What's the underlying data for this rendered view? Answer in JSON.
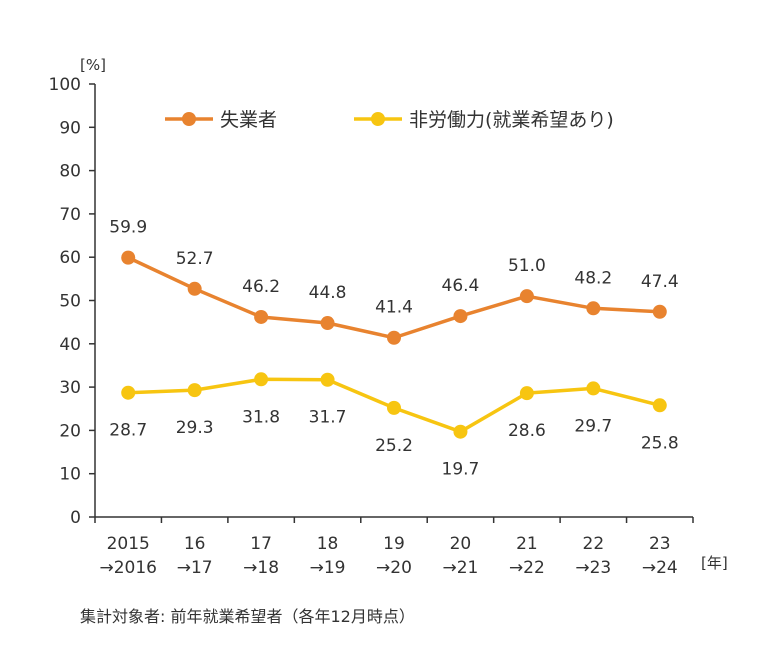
{
  "chart_data": {
    "type": "line",
    "title": "",
    "xlabel": "",
    "ylabel": "",
    "y_unit_label": "[%]",
    "x_unit_label": "[年]",
    "ylim": [
      0,
      100
    ],
    "yticks": [
      0,
      10,
      20,
      30,
      40,
      50,
      60,
      70,
      80,
      90,
      100
    ],
    "grid": false,
    "legend_position": "top",
    "categories": [
      [
        "2015",
        "→2016"
      ],
      [
        "16",
        "→17"
      ],
      [
        "17",
        "→18"
      ],
      [
        "18",
        "→19"
      ],
      [
        "19",
        "→20"
      ],
      [
        "20",
        "→21"
      ],
      [
        "21",
        "→22"
      ],
      [
        "22",
        "→23"
      ],
      [
        "23",
        "→24"
      ]
    ],
    "series": [
      {
        "name": "失業者",
        "color": "#E8832F",
        "label_position": "above",
        "values": [
          59.9,
          52.7,
          46.2,
          44.8,
          41.4,
          46.4,
          51.0,
          48.2,
          47.4
        ],
        "labels": [
          "59.9",
          "52.7",
          "46.2",
          "44.8",
          "41.4",
          "46.4",
          "51.0",
          "48.2",
          "47.4"
        ]
      },
      {
        "name": "非労働力(就業希望あり)",
        "color": "#F7C511",
        "label_position": "below",
        "values": [
          28.7,
          29.3,
          31.8,
          31.7,
          25.2,
          19.7,
          28.6,
          29.7,
          25.8
        ],
        "labels": [
          "28.7",
          "29.3",
          "31.8",
          "31.7",
          "25.2",
          "19.7",
          "28.6",
          "29.7",
          "25.8"
        ]
      }
    ],
    "footnote": "集計対象者: 前年就業希望者（各年12月時点）"
  }
}
